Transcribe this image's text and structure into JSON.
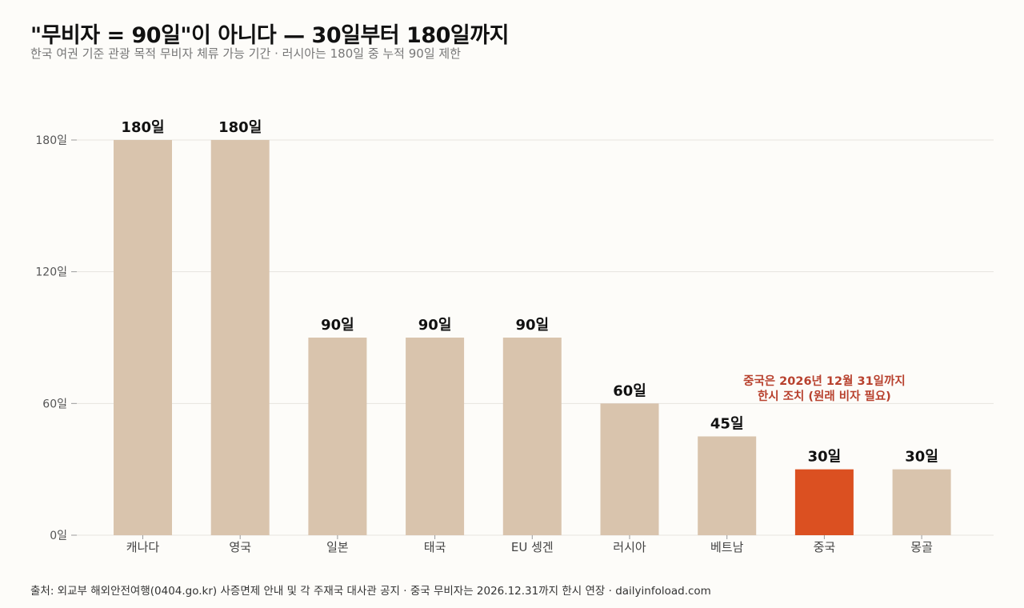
{
  "title": "\"무비자 = 90일\"이 아니다 — 30일부터 180일까지",
  "subtitle": "한국 여권 기준 관광 목적 무비자 체류 가능 기간 · 러시아는 180일 중 누적 90일 제한",
  "footer": "출처: 외교부 해외안전여행(0404.go.kr) 사증면제 안내 및 각 주재국 대사관 공지 · 중국 무비자는 2026.12.31까지 한시 연장 · dailyinfoload.com",
  "colors": {
    "bar": "#d9c4ad",
    "highlight": "#db5021",
    "annotation": "#b8412e",
    "grid": "#e6e4df",
    "axis_text": "#555555",
    "background": "#fdfcf9"
  },
  "chart_data": {
    "type": "bar",
    "categories": [
      "캐나다",
      "영국",
      "일본",
      "태국",
      "EU 셍겐",
      "러시아",
      "베트남",
      "중국",
      "몽골"
    ],
    "values": [
      180,
      180,
      90,
      90,
      90,
      60,
      45,
      30,
      30
    ],
    "value_labels": [
      "180일",
      "180일",
      "90일",
      "90일",
      "90일",
      "60일",
      "45일",
      "30일",
      "30일"
    ],
    "highlight_index": 7,
    "ylim": [
      0,
      180
    ],
    "yticks": [
      0,
      60,
      120,
      180
    ],
    "ytick_labels": [
      "0일",
      "60일",
      "120일",
      "180일"
    ],
    "xlabel": "",
    "ylabel": "",
    "grid": true,
    "annotation": {
      "lines": [
        "중국은 2026년 12월 31일까지",
        "한시 조치 (원래 비자 필요)"
      ],
      "category_index": 7
    }
  }
}
